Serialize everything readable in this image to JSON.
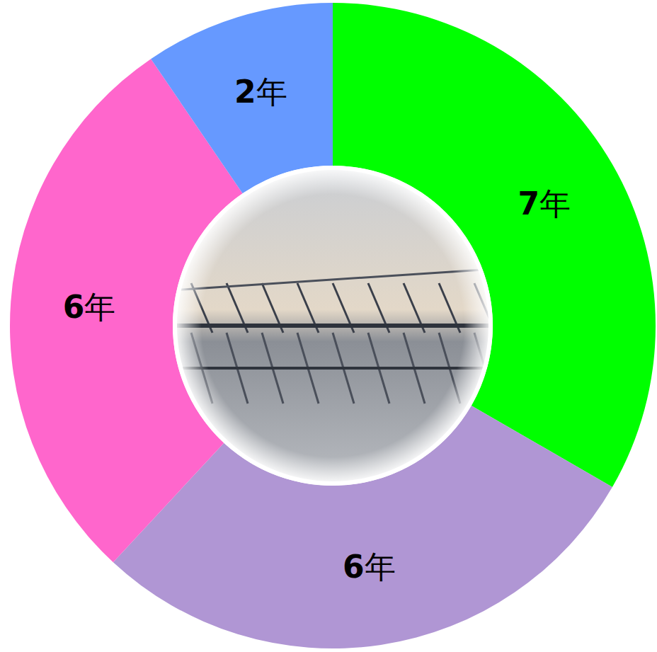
{
  "chart_data": {
    "type": "pie",
    "values": [
      7,
      6,
      6,
      2
    ],
    "value_labels": [
      "7年",
      "6年",
      "6年",
      "2年"
    ],
    "colors": [
      "#00ff00",
      "#b096d4",
      "#ff66cc",
      "#6699ff"
    ],
    "data_labels": true
  }
}
